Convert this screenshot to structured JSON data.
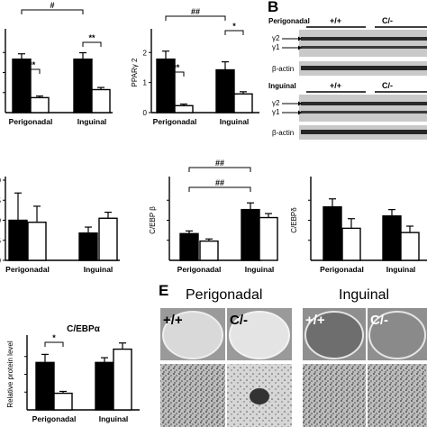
{
  "chart_data": [
    {
      "type": "bar",
      "ylabel": "",
      "ylim": [
        0,
        1.5
      ],
      "categories": [
        "Perigonadal",
        "Inguinal"
      ],
      "series": [
        {
          "values": [
            1.0,
            1.0
          ],
          "errors": [
            0.1,
            0.12
          ]
        },
        {
          "values": [
            0.28,
            0.43
          ],
          "errors": [
            0.03,
            0.04
          ]
        }
      ],
      "annotations": [
        {
          "text": "***"
        },
        {
          "text": "**"
        },
        {
          "text": "#"
        }
      ]
    },
    {
      "type": "bar",
      "ylabel": "PPARγ 2",
      "ylim": [
        0,
        1.5
      ],
      "yticks": [
        "0",
        "1",
        "2"
      ],
      "categories": [
        "Perigonadal",
        "Inguinal"
      ],
      "series": [
        {
          "values": [
            1.0,
            0.8
          ],
          "errors": [
            0.15,
            0.15
          ]
        },
        {
          "values": [
            0.13,
            0.35
          ],
          "errors": [
            0.03,
            0.04
          ]
        }
      ],
      "annotations": [
        {
          "text": "***"
        },
        {
          "text": "*"
        },
        {
          "text": "##"
        }
      ]
    },
    {
      "type": "bar",
      "ylabel": "",
      "ylim": [
        0,
        2.0
      ],
      "yticks": [
        "2.0",
        "1.5",
        "1.0",
        "0.5",
        "0.0"
      ],
      "ytick_values": [
        2.0,
        1.5,
        1.0,
        0.5,
        0.0
      ],
      "categories": [
        "Perigonadal",
        "Inguinal"
      ],
      "series": [
        {
          "values": [
            1.0,
            0.68
          ],
          "errors": [
            0.68,
            0.15
          ]
        },
        {
          "values": [
            0.95,
            1.05
          ],
          "errors": [
            0.4,
            0.15
          ]
        }
      ],
      "annotations": []
    },
    {
      "type": "bar",
      "ylabel": "C/EBP β",
      "ylim": [
        0,
        3.0
      ],
      "categories": [
        "Perigonadal",
        "Inguinal"
      ],
      "series": [
        {
          "values": [
            1.0,
            1.9
          ],
          "errors": [
            0.1,
            0.25
          ]
        },
        {
          "values": [
            0.72,
            1.6
          ],
          "errors": [
            0.08,
            0.15
          ]
        }
      ],
      "annotations": [
        {
          "text": "##"
        },
        {
          "text": "##"
        }
      ]
    },
    {
      "type": "bar",
      "ylabel": "C/EBPδ",
      "ylim": [
        0,
        1.5
      ],
      "categories": [
        "Perigonadal",
        "Inguinal"
      ],
      "series": [
        {
          "values": [
            1.0,
            0.83
          ],
          "errors": [
            0.15,
            0.12
          ]
        },
        {
          "values": [
            0.6,
            0.52
          ],
          "errors": [
            0.18,
            0.12
          ]
        }
      ],
      "annotations": []
    },
    {
      "type": "bar",
      "title": "C/EBPα",
      "ylabel": "Relative protein level",
      "ylim": [
        0,
        1.5
      ],
      "categories": [
        "Perigonadal",
        "Inguinal"
      ],
      "series": [
        {
          "values": [
            1.0,
            1.0
          ],
          "errors": [
            0.17,
            0.1
          ]
        },
        {
          "values": [
            0.35,
            1.28
          ],
          "errors": [
            0.04,
            0.13
          ]
        }
      ],
      "annotations": [
        {
          "text": "*"
        }
      ]
    }
  ],
  "panel_b": {
    "label": "B",
    "blocks": [
      {
        "tissue": "Perigonadal",
        "genotypes": [
          "+/+",
          "C/-"
        ],
        "bands": [
          "γ2",
          "γ1"
        ],
        "loading_control": "β-actin"
      },
      {
        "tissue": "Inguinal",
        "genotypes": [
          "+/+",
          "C/-"
        ],
        "bands": [
          "γ2",
          "γ1"
        ],
        "loading_control": "β-actin"
      }
    ]
  },
  "panel_e": {
    "label": "E",
    "tissues": [
      "Perigonadal",
      "Inguinal"
    ],
    "genotypes": [
      "+/+",
      "C/-",
      "+/+",
      "C/-"
    ]
  },
  "colors": {
    "filled": "#000000",
    "open": "#ffffff",
    "blot_bg": "#c8c8c8",
    "band": "#1e1e1e"
  }
}
